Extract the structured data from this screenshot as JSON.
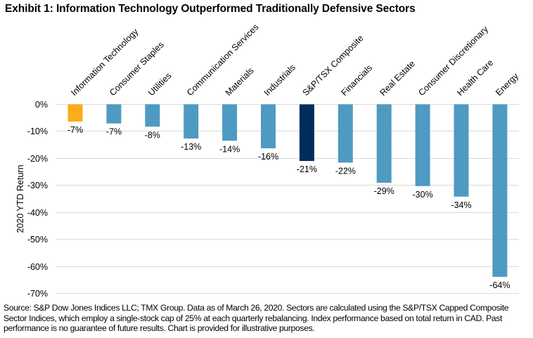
{
  "title": "Exhibit 1: Information Technology Outperformed Traditionally Defensive Sectors",
  "footnote": "Source: S&P Dow Jones Indices LLC; TMX Group. Data as of March 26, 2020. Sectors are calculated using the S&P/TSX Capped Composite Sector Indices, which employ a single-stock cap of 25% at each quarterly rebalancing. Index performance based on total return in CAD. Past performance is no guarantee of future results. Chart is provided for illustrative purposes.",
  "colors": {
    "highlight": "#FBAC1B",
    "benchmark": "#002D5C",
    "default": "#4F9AC2",
    "gridline": "#D9D9D9"
  },
  "chart_data": {
    "type": "bar",
    "title": "Exhibit 1: Information Technology Outperformed Traditionally Defensive Sectors",
    "xlabel": "",
    "ylabel": "2020 YTD Return",
    "ylim": [
      -70,
      0
    ],
    "yticks": [
      0,
      -10,
      -20,
      -30,
      -40,
      -50,
      -60,
      -70
    ],
    "ytick_labels": [
      "0%",
      "-10%",
      "-20%",
      "-30%",
      "-40%",
      "-50%",
      "-60%",
      "-70%"
    ],
    "grid": true,
    "legend": "none",
    "categories": [
      "Information Technology",
      "Consumer Staples",
      "Utilities",
      "Communication Services",
      "Materials",
      "Industrials",
      "S&P/TSX Composite",
      "Financials",
      "Real Estate",
      "Consumer Discretionary",
      "Health Care",
      "Energy"
    ],
    "values": [
      -6.5,
      -7.2,
      -8.4,
      -12.8,
      -13.6,
      -16.4,
      -21.1,
      -21.7,
      -29.2,
      -30.4,
      -34.3,
      -64.0
    ],
    "data_labels": [
      "-7%",
      "-7%",
      "-8%",
      "-13%",
      "-14%",
      "-16%",
      "-21%",
      "-22%",
      "-29%",
      "-30%",
      "-34%",
      "-64%"
    ],
    "bar_roles": [
      "highlight",
      "default",
      "default",
      "default",
      "default",
      "default",
      "benchmark",
      "default",
      "default",
      "default",
      "default",
      "default"
    ]
  }
}
